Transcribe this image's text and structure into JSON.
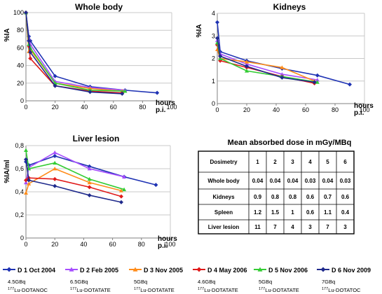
{
  "charts": [
    {
      "id": "wb",
      "title": "Whole body",
      "ylabel": "%IA",
      "xlabel": "hours p.i.",
      "xlabel_line1": "hours",
      "xlabel_line2": "p.i.",
      "yticks": [
        "0",
        "20",
        "40",
        "60",
        "80",
        "100"
      ],
      "xticks": [
        "0",
        "20",
        "40",
        "60",
        "80",
        "100"
      ]
    },
    {
      "id": "kid",
      "title": "Kidneys",
      "ylabel": "%IA",
      "xlabel": "hours p.i.",
      "xlabel_line1": "hours",
      "xlabel_line2": "p.i.",
      "yticks": [
        "0",
        "1",
        "2",
        "3",
        "4"
      ],
      "xticks": [
        "0",
        "20",
        "40",
        "60",
        "80",
        "100"
      ]
    },
    {
      "id": "liv",
      "title": "Liver lesion",
      "ylabel": "%IA/ml",
      "xlabel": "hours p.i.",
      "xlabel_line1": "hours",
      "xlabel_line2": "p.i.",
      "yticks": [
        "0",
        "0,2",
        "0,4",
        "0,6",
        "0,8"
      ],
      "xticks": [
        "0",
        "20",
        "40",
        "60",
        "80",
        "100"
      ]
    }
  ],
  "chart_data": [
    {
      "type": "line",
      "title": "Whole body",
      "xlabel": "hours p.i.",
      "ylabel": "%IA",
      "xlim": [
        0,
        100
      ],
      "ylim": [
        0,
        100
      ],
      "grid": true,
      "series": [
        {
          "name": "D 1 Oct 2004",
          "color": "#1f33b4",
          "marker": "diamond",
          "x": [
            0,
            2,
            3,
            20,
            44,
            68,
            90
          ],
          "y": [
            100,
            73,
            68,
            28,
            16,
            12,
            9
          ]
        },
        {
          "name": "D 2 Feb 2005",
          "color": "#a64dff",
          "marker": "triangle",
          "x": [
            0,
            2,
            3,
            20,
            44,
            68
          ],
          "y": [
            100,
            70,
            64,
            22,
            15,
            12
          ]
        },
        {
          "name": "D 3 Nov 2005",
          "color": "#ff8c1a",
          "marker": "triangle",
          "x": [
            0,
            2,
            3,
            20,
            44,
            66
          ],
          "y": [
            100,
            56,
            58,
            20,
            14,
            11
          ]
        },
        {
          "name": "D 4 May 2006",
          "color": "#e01a1a",
          "marker": "diamond",
          "x": [
            0,
            2,
            3,
            20,
            44,
            66
          ],
          "y": [
            100,
            62,
            48,
            17,
            11,
            9
          ]
        },
        {
          "name": "D 5 Nov 2006",
          "color": "#33cc33",
          "marker": "triangle",
          "x": [
            0,
            2,
            3,
            20,
            44,
            68
          ],
          "y": [
            100,
            64,
            60,
            20,
            12,
            11
          ]
        },
        {
          "name": "D 6 Nov 2009",
          "color": "#1f2a8c",
          "marker": "diamond",
          "x": [
            0,
            2,
            3,
            20,
            44,
            66
          ],
          "y": [
            100,
            68,
            55,
            17,
            10,
            8
          ]
        }
      ]
    },
    {
      "type": "line",
      "title": "Kidneys",
      "xlabel": "hours p.i.",
      "ylabel": "%IA",
      "xlim": [
        0,
        100
      ],
      "ylim": [
        0,
        4
      ],
      "grid": true,
      "series": [
        {
          "name": "D 1 Oct 2004",
          "color": "#1f33b4",
          "marker": "diamond",
          "x": [
            0,
            2,
            20,
            44,
            68,
            90
          ],
          "y": [
            3.6,
            2.3,
            1.9,
            1.55,
            1.25,
            0.85
          ]
        },
        {
          "name": "D 2 Feb 2005",
          "color": "#a64dff",
          "marker": "triangle",
          "x": [
            0,
            2,
            20,
            44,
            68
          ],
          "y": [
            2.8,
            2.2,
            1.75,
            1.3,
            1.05
          ]
        },
        {
          "name": "D 3 Nov 2005",
          "color": "#ff8c1a",
          "marker": "triangle",
          "x": [
            0,
            2,
            20,
            44,
            66
          ],
          "y": [
            2.4,
            2.0,
            1.85,
            1.6,
            1.0
          ]
        },
        {
          "name": "D 4 May 2006",
          "color": "#e01a1a",
          "marker": "diamond",
          "x": [
            0,
            2,
            20,
            44,
            66
          ],
          "y": [
            2.6,
            1.9,
            1.6,
            1.2,
            0.9
          ]
        },
        {
          "name": "D 5 Nov 2006",
          "color": "#33cc33",
          "marker": "triangle",
          "x": [
            0,
            2,
            20,
            44,
            68
          ],
          "y": [
            2.7,
            2.0,
            1.45,
            1.2,
            0.95
          ]
        },
        {
          "name": "D 6 Nov 2009",
          "color": "#1f2a8c",
          "marker": "diamond",
          "x": [
            0,
            2,
            20,
            44,
            66
          ],
          "y": [
            2.9,
            2.1,
            1.65,
            1.15,
            0.95
          ]
        }
      ]
    },
    {
      "type": "line",
      "title": "Liver lesion",
      "xlabel": "hours p.i.",
      "ylabel": "%IA/ml",
      "xlim": [
        0,
        100
      ],
      "ylim": [
        0,
        0.8
      ],
      "grid": true,
      "series": [
        {
          "name": "D 1 Oct 2004",
          "color": "#1f33b4",
          "marker": "diamond",
          "x": [
            0,
            2,
            20,
            44,
            68,
            90
          ],
          "y": [
            0.66,
            0.63,
            0.71,
            0.62,
            0.53,
            0.46
          ]
        },
        {
          "name": "D 2 Feb 2005",
          "color": "#a64dff",
          "marker": "triangle",
          "x": [
            0,
            2,
            20,
            44,
            68
          ],
          "y": [
            0.48,
            0.61,
            0.74,
            0.6,
            0.53
          ]
        },
        {
          "name": "D 3 Nov 2005",
          "color": "#ff8c1a",
          "marker": "triangle",
          "x": [
            0,
            2,
            20,
            44,
            66
          ],
          "y": [
            0.39,
            0.47,
            0.6,
            0.48,
            0.41
          ]
        },
        {
          "name": "D 4 May 2006",
          "color": "#e01a1a",
          "marker": "diamond",
          "x": [
            0,
            2,
            20,
            44,
            66
          ],
          "y": [
            0.5,
            0.52,
            0.51,
            0.44,
            0.36
          ]
        },
        {
          "name": "D 5 Nov 2006",
          "color": "#33cc33",
          "marker": "triangle",
          "x": [
            0,
            2,
            20,
            44,
            68
          ],
          "y": [
            0.76,
            0.6,
            0.65,
            0.51,
            0.42
          ]
        },
        {
          "name": "D 6 Nov 2009",
          "color": "#1f2a8c",
          "marker": "diamond",
          "x": [
            0,
            2,
            20,
            44,
            66
          ],
          "y": [
            0.68,
            0.5,
            0.45,
            0.37,
            0.31
          ]
        }
      ]
    },
    {
      "type": "table",
      "title": "Mean absorbed dose in mGy/MBq",
      "columns": [
        "Dosimetry",
        "1",
        "2",
        "3",
        "4",
        "5",
        "6"
      ],
      "rows": [
        [
          "Whole body",
          "0.04",
          "0.04",
          "0.04",
          "0.03",
          "0.04",
          "0.03"
        ],
        [
          "Kidneys",
          "0.9",
          "0.8",
          "0.8",
          "0.6",
          "0.7",
          "0.6"
        ],
        [
          "Spleen",
          "1.2",
          "1.5",
          "1",
          "0.6",
          "1.1",
          "0.4"
        ],
        [
          "Liver lesion",
          "11",
          "7",
          "4",
          "3",
          "7",
          "3"
        ]
      ]
    }
  ],
  "legend": [
    {
      "label": "D 1 Oct 2004",
      "dose": "4.5GBq",
      "tracer_sup": "177",
      "tracer": "Lu-DOTANOC",
      "color": "#1f33b4",
      "marker": "diamond"
    },
    {
      "label": "D 2 Feb 2005",
      "dose": "6.5GBq",
      "tracer_sup": "177",
      "tracer": "Lu-DOTATATE",
      "color": "#a64dff",
      "marker": "triangle"
    },
    {
      "label": "D 3 Nov 2005",
      "dose": "5GBq",
      "tracer_sup": "177",
      "tracer": "Lu-DOTATATE",
      "color": "#ff8c1a",
      "marker": "triangle"
    },
    {
      "label": "D 4 May 2006",
      "dose": "4.6GBq",
      "tracer_sup": "177",
      "tracer": "Lu-DOTATATE",
      "color": "#e01a1a",
      "marker": "diamond"
    },
    {
      "label": "D 5 Nov 2006",
      "dose": "5GBq",
      "tracer_sup": "177",
      "tracer": "Lu-DOTATATE",
      "color": "#33cc33",
      "marker": "triangle"
    },
    {
      "label": "D 6 Nov 2009",
      "dose": "7GBq",
      "tracer_sup": "177",
      "tracer": "Lu-DOTATOC",
      "color": "#1f2a8c",
      "marker": "diamond"
    }
  ]
}
